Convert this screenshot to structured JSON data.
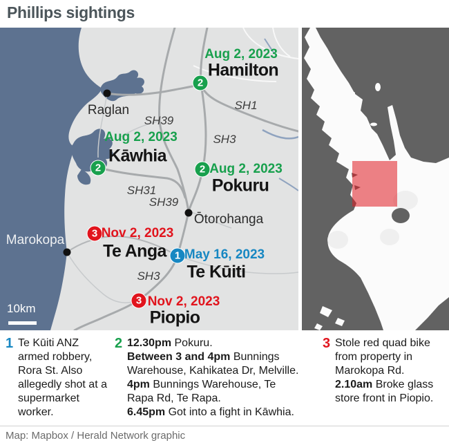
{
  "title": "Phillips sightings",
  "colors": {
    "accent_green": "#18a04d",
    "accent_red": "#e1141d",
    "accent_blue": "#1787c2",
    "sea": "#5d7290",
    "land": "#e2e3e3",
    "inset_sea": "#626262",
    "inset_land": "#fbfbfb",
    "highlight": "rgba(224,27,34,0.55)",
    "title_color": "#4b555a"
  },
  "main_map": {
    "scale_label": "10km",
    "towns": {
      "raglan": "Raglan",
      "otorohanga": "Ōtorohanga",
      "marokopa": "Marokopa"
    },
    "roads": {
      "sh1": "SH1",
      "sh3": "SH3",
      "sh31": "SH31",
      "sh39": "SH39"
    },
    "sightings": [
      {
        "num": "2",
        "date": "Aug 2, 2023",
        "place": "Hamilton",
        "color": "green"
      },
      {
        "num": "2",
        "date": "Aug 2, 2023",
        "place": "Kāwhia",
        "color": "green"
      },
      {
        "num": "2",
        "date": "Aug 2, 2023",
        "place": "Pokuru",
        "color": "green"
      },
      {
        "num": "3",
        "date": "Nov 2, 2023",
        "place": "Te Anga",
        "color": "red"
      },
      {
        "num": "1",
        "date": "May 16, 2023",
        "place": "Te Kūiti",
        "color": "blue"
      },
      {
        "num": "3",
        "date": "Nov 2, 2023",
        "place": "Piopio",
        "color": "red"
      }
    ]
  },
  "legend": {
    "entries": [
      {
        "number": "1",
        "color": "blue",
        "segments": [
          {
            "t": "Te Kūiti ANZ armed robbery, Rora St. Also allegedly shot at a supermarket worker.",
            "b": false
          }
        ]
      },
      {
        "number": "2",
        "color": "green",
        "segments": [
          {
            "t": "12.30pm",
            "b": true
          },
          {
            "t": " Pokuru.\n",
            "b": false
          },
          {
            "t": "Between 3 and 4pm",
            "b": true
          },
          {
            "t": " Bunnings Warehouse, Kahikatea Dr, Melville.\n",
            "b": false
          },
          {
            "t": "4pm",
            "b": true
          },
          {
            "t": " Bunnings Warehouse, Te Rapa Rd, Te Rapa.\n",
            "b": false
          },
          {
            "t": "6.45pm",
            "b": true
          },
          {
            "t": " Got into a fight in Kāwhia.",
            "b": false
          }
        ]
      },
      {
        "number": "3",
        "color": "red",
        "segments": [
          {
            "t": "Stole red quad bike from property in Marokopa Rd.\n",
            "b": false
          },
          {
            "t": "2.10am",
            "b": true
          },
          {
            "t": " Broke glass store front in Piopio.",
            "b": false
          }
        ]
      }
    ]
  },
  "footer": {
    "credit": "Map: Mapbox / Herald Network graphic"
  }
}
